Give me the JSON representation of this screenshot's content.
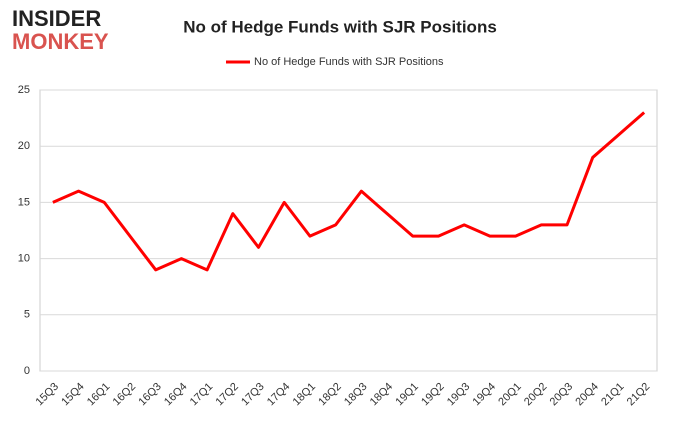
{
  "logo": {
    "line1": "INSIDER",
    "line2": "MONKEY"
  },
  "chart_data": {
    "type": "line",
    "title": "No of Hedge Funds with SJR Positions",
    "categories": [
      "15Q3",
      "15Q4",
      "16Q1",
      "16Q2",
      "16Q3",
      "16Q4",
      "17Q1",
      "17Q2",
      "17Q3",
      "17Q4",
      "18Q1",
      "18Q2",
      "18Q3",
      "18Q4",
      "19Q1",
      "19Q2",
      "19Q3",
      "19Q4",
      "20Q1",
      "20Q2",
      "20Q3",
      "20Q4",
      "21Q1",
      "21Q2"
    ],
    "series": [
      {
        "name": "No of Hedge Funds with SJR Positions",
        "color": "#ff0000",
        "values": [
          15,
          16,
          15,
          12,
          9,
          10,
          9,
          14,
          11,
          15,
          12,
          13,
          16,
          14,
          12,
          12,
          13,
          12,
          12,
          13,
          13,
          19,
          21,
          23
        ]
      }
    ],
    "ylim": [
      0,
      25
    ],
    "yticks": [
      0,
      5,
      10,
      15,
      20,
      25
    ],
    "grid": true,
    "legend": "top"
  }
}
